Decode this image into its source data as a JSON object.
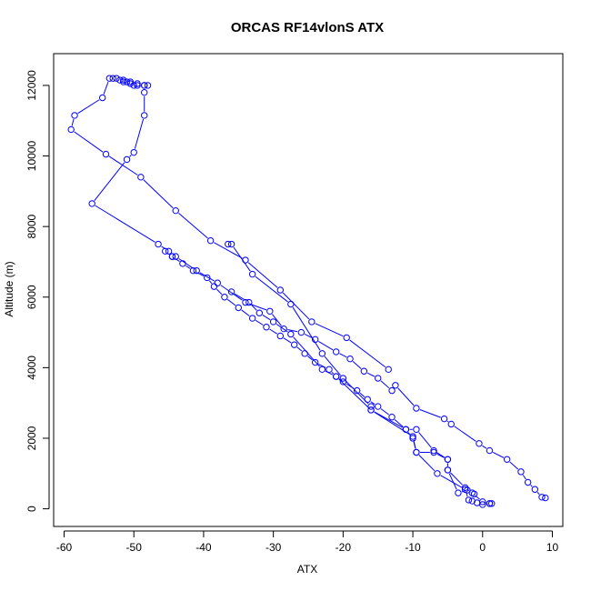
{
  "chart_data": {
    "type": "line",
    "title": "ORCAS RF14vlonS ATX",
    "xlabel": "ATX",
    "ylabel": "Altitude (m)",
    "xlim": [
      -61.5,
      11.5
    ],
    "ylim": [
      -500,
      12900
    ],
    "x_ticks": [
      -60,
      -50,
      -40,
      -30,
      -20,
      -10,
      0,
      10
    ],
    "x_tick_labels": [
      "-60",
      "-50",
      "-40",
      "-30",
      "-20",
      "-10",
      "0",
      "10"
    ],
    "y_ticks": [
      0,
      2000,
      4000,
      6000,
      8000,
      10000,
      12000
    ],
    "y_tick_labels": [
      "0",
      "2000",
      "4000",
      "6000",
      "8000",
      "10000",
      "12000"
    ],
    "series_color": "#0000ff",
    "marker": "open-circle",
    "grid": false,
    "series": [
      {
        "points": [
          [
            1.0,
            150
          ],
          [
            1.3,
            150
          ],
          [
            0.0,
            120
          ],
          [
            -0.8,
            170
          ],
          [
            -1.5,
            220
          ],
          [
            -1.2,
            420
          ],
          [
            -2.2,
            530
          ],
          [
            -3.5,
            450
          ],
          [
            -5.0,
            1100
          ],
          [
            -5.0,
            1400
          ],
          [
            -7.0,
            1600
          ],
          [
            -9.5,
            1600
          ],
          [
            -10.0,
            2000
          ],
          [
            -11.0,
            2250
          ],
          [
            -13.0,
            2600
          ],
          [
            -15.0,
            2900
          ],
          [
            -16.5,
            3100
          ],
          [
            -18.0,
            3350
          ],
          [
            -20.0,
            3600
          ],
          [
            -21.0,
            3750
          ],
          [
            -22.0,
            3950
          ],
          [
            -24.0,
            4150
          ],
          [
            -25.5,
            4400
          ],
          [
            -27.0,
            4650
          ],
          [
            -29.0,
            4900
          ],
          [
            -31.0,
            5150
          ],
          [
            -33.0,
            5400
          ],
          [
            -35.0,
            5700
          ],
          [
            -37.0,
            6000
          ],
          [
            -38.5,
            6300
          ],
          [
            -39.5,
            6550
          ],
          [
            -41.5,
            6750
          ],
          [
            -43.0,
            6950
          ],
          [
            -44.5,
            7150
          ],
          [
            -45.0,
            7300
          ],
          [
            -46.5,
            7500
          ],
          [
            -56.0,
            8650
          ],
          [
            -51.0,
            9900
          ],
          [
            -50.0,
            10100
          ],
          [
            -48.5,
            11150
          ],
          [
            -48.5,
            11800
          ],
          [
            -48.5,
            12000
          ],
          [
            -49.5,
            12050
          ],
          [
            -50.5,
            12100
          ],
          [
            -51.5,
            12150
          ],
          [
            -52.5,
            12200
          ],
          [
            -53.5,
            12200
          ],
          [
            -54.5,
            11650
          ],
          [
            -58.5,
            11150
          ],
          [
            -59.0,
            10750
          ],
          [
            -54.0,
            10050
          ],
          [
            -49.0,
            9400
          ],
          [
            -44.0,
            8450
          ],
          [
            -39.0,
            7600
          ],
          [
            -34.0,
            7050
          ],
          [
            -29.0,
            6200
          ],
          [
            -24.5,
            5300
          ],
          [
            -19.5,
            4850
          ],
          [
            -13.5,
            3950
          ]
        ]
      },
      {
        "points": [
          [
            -45.5,
            7300
          ],
          [
            -44.5,
            7150
          ],
          [
            -44.0,
            7150
          ],
          [
            -41.0,
            6750
          ],
          [
            -38.0,
            6400
          ],
          [
            -34.0,
            5850
          ],
          [
            -30.5,
            5600
          ],
          [
            -28.5,
            5100
          ],
          [
            -26.0,
            5000
          ],
          [
            -24.0,
            4800
          ],
          [
            -21.0,
            4450
          ],
          [
            -19.0,
            4250
          ],
          [
            -17.0,
            3900
          ],
          [
            -15.0,
            3700
          ],
          [
            -13.0,
            3350
          ],
          [
            -12.5,
            3500
          ],
          [
            -9.5,
            2850
          ],
          [
            -5.5,
            2550
          ],
          [
            -4.5,
            2400
          ],
          [
            -0.5,
            1850
          ],
          [
            1.0,
            1650
          ],
          [
            3.5,
            1400
          ],
          [
            5.5,
            1050
          ],
          [
            6.5,
            750
          ],
          [
            7.5,
            550
          ],
          [
            8.5,
            330
          ],
          [
            9.0,
            310
          ]
        ]
      },
      {
        "points": [
          [
            -53.0,
            12200
          ],
          [
            -52.0,
            12150
          ],
          [
            -51.5,
            12100
          ],
          [
            -51.0,
            12100
          ],
          [
            -50.5,
            12050
          ],
          [
            -50.0,
            12000
          ],
          [
            -49.5,
            12000
          ],
          [
            -48.5,
            12000
          ],
          [
            -48.0,
            12000
          ]
        ]
      },
      {
        "points": [
          [
            -36.5,
            7500
          ],
          [
            -36.0,
            7500
          ],
          [
            -33.0,
            6650
          ],
          [
            -27.5,
            5800
          ],
          [
            -23.0,
            4400
          ],
          [
            -20.0,
            3700
          ],
          [
            -16.0,
            2900
          ],
          [
            -16.0,
            2800
          ],
          [
            -11.0,
            2250
          ],
          [
            -9.5,
            2250
          ],
          [
            -7.0,
            1650
          ],
          [
            -5.0,
            1400
          ],
          [
            -5.0,
            1100
          ],
          [
            -2.5,
            600
          ],
          [
            -1.5,
            450
          ],
          [
            0.0,
            200
          ],
          [
            1.0,
            150
          ]
        ]
      },
      {
        "points": [
          [
            -36.0,
            6150
          ],
          [
            -33.5,
            5850
          ],
          [
            -32.0,
            5550
          ],
          [
            -30.0,
            5300
          ],
          [
            -27.5,
            4950
          ],
          [
            -23.0,
            3950
          ],
          [
            -21.0,
            3750
          ],
          [
            -16.0,
            2800
          ],
          [
            -10.0,
            2050
          ],
          [
            -9.5,
            1600
          ],
          [
            -6.5,
            1000
          ],
          [
            -2.5,
            550
          ],
          [
            -2.0,
            250
          ]
        ]
      }
    ]
  }
}
